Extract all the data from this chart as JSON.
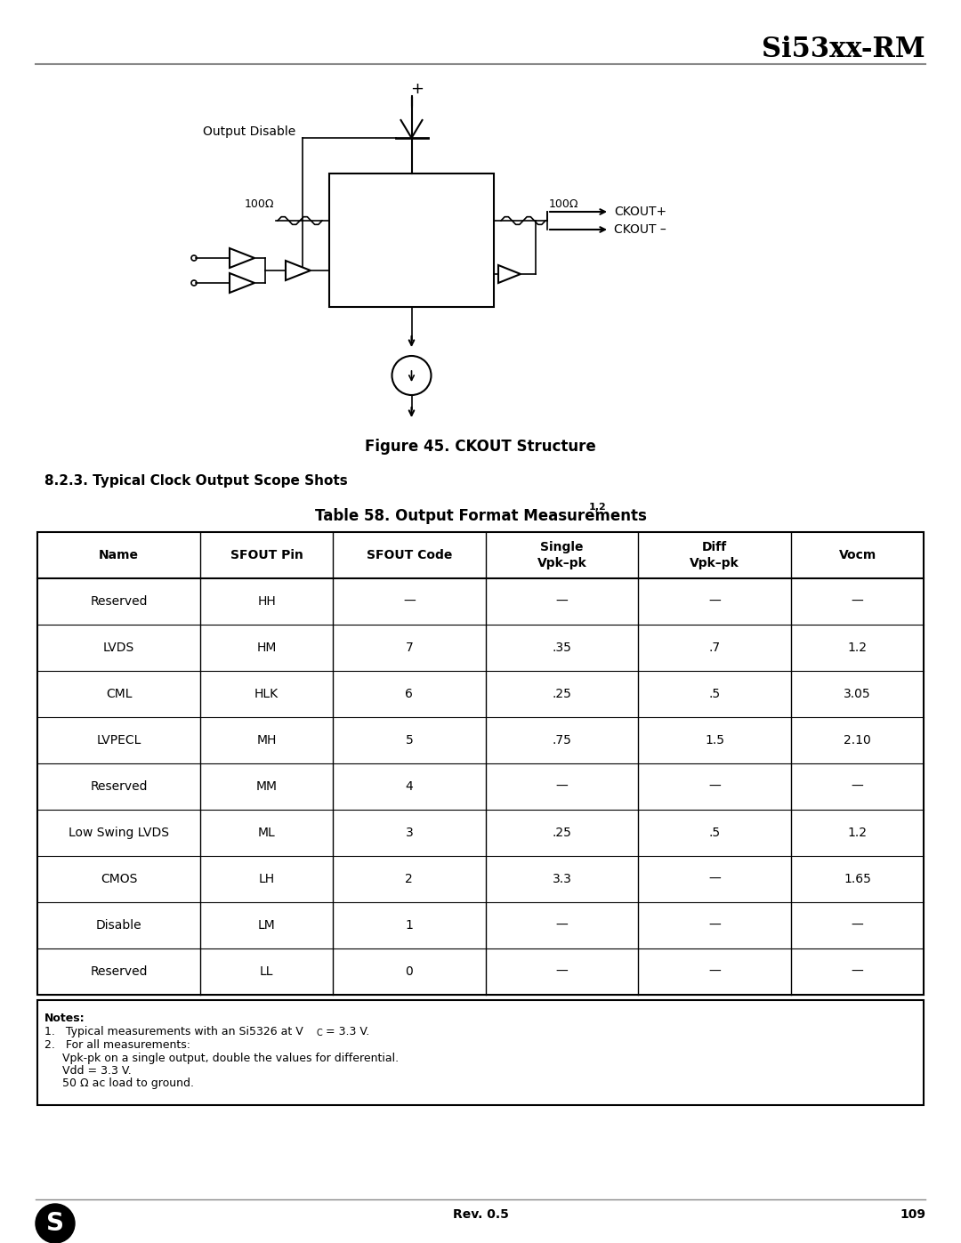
{
  "header_title": "Si53xx-RM",
  "figure_caption": "Figure 45. CKOUT Structure",
  "section_heading": "8.2.3. Typical Clock Output Scope Shots",
  "table_title": "Table 58. Output Format Measurements",
  "table_title_superscript": "1,2",
  "col_headers": [
    "Name",
    "SFOUT Pin",
    "SFOUT Code",
    "Single\nVpk–pk",
    "Diff\nVpk–pk",
    "Vocm"
  ],
  "rows": [
    [
      "Reserved",
      "HH",
      "—",
      "—",
      "—",
      "—"
    ],
    [
      "LVDS",
      "HM",
      "7",
      ".35",
      ".7",
      "1.2"
    ],
    [
      "CML",
      "HLK",
      "6",
      ".25",
      ".5",
      "3.05"
    ],
    [
      "LVPECL",
      "MH",
      "5",
      ".75",
      "1.5",
      "2.10"
    ],
    [
      "Reserved",
      "MM",
      "4",
      "—",
      "—",
      "—"
    ],
    [
      "Low Swing LVDS",
      "ML",
      "3",
      ".25",
      ".5",
      "1.2"
    ],
    [
      "CMOS",
      "LH",
      "2",
      "3.3",
      "—",
      "1.65"
    ],
    [
      "Disable",
      "LM",
      "1",
      "—",
      "—",
      "—"
    ],
    [
      "Reserved",
      "LL",
      "0",
      "—",
      "—",
      "—"
    ]
  ],
  "notes_title": "Notes:",
  "note1": "1.   Typical measurements with an Si5326 at V",
  "note1b": "C",
  "note1c": " = 3.3 V.",
  "note2": "2.   For all measurements:",
  "note2a": "Vpk-pk on a single output, double the values for differential.",
  "note2b": "Vdd = 3.3 V.",
  "note2c": "50 Ω ac load to ground.",
  "footer_rev": "Rev. 0.5",
  "footer_page": "109",
  "bg_color": "#ffffff",
  "header_line_color": "#888888"
}
